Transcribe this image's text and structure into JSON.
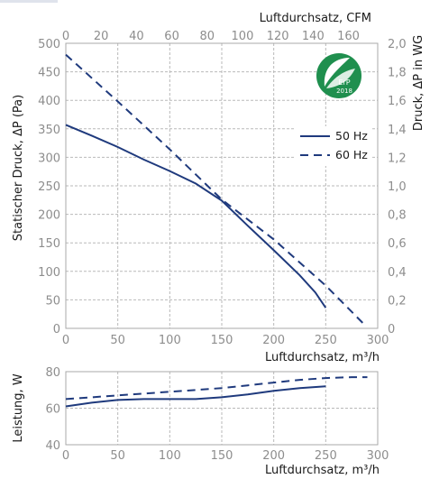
{
  "colors": {
    "series": "#1f3a7d",
    "grid": "#b9b9b9",
    "tick": "#8d8d8d",
    "logo": "#1f8f4e"
  },
  "logo": {
    "icon": "erp-leaf-logo",
    "line1": "ErP",
    "line2": "2018"
  },
  "chart_data": [
    {
      "type": "line",
      "title": "",
      "xlabel": "Luftdurchsatz, m³/h",
      "ylabel": "Statischer Druck, ΔP (Pa)",
      "xlim": [
        0,
        300
      ],
      "ylim": [
        0,
        500
      ],
      "x_ticks": [
        "0",
        "50",
        "100",
        "150",
        "200",
        "250",
        "300"
      ],
      "y_ticks": [
        "0",
        "50",
        "100",
        "150",
        "200",
        "250",
        "300",
        "350",
        "400",
        "450",
        "500"
      ],
      "secondary_x_label": "Luftdurchsatz, CFM",
      "secondary_x_ticks": [
        "0",
        "20",
        "40",
        "60",
        "80",
        "100",
        "120",
        "140",
        "160"
      ],
      "secondary_y_label": "Druck, ΔP in WG",
      "secondary_y_ticks": [
        "0",
        "0,2",
        "0,4",
        "0,6",
        "0,8",
        "1,0",
        "1,2",
        "1,4",
        "1,6",
        "1,8",
        "2,0"
      ],
      "grid": true,
      "legend_position": "top-right",
      "series": [
        {
          "name": "50 Hz",
          "style": "solid",
          "x": [
            0,
            25,
            50,
            75,
            100,
            125,
            150,
            175,
            200,
            225,
            240,
            250
          ],
          "y": [
            357,
            338,
            318,
            296,
            276,
            254,
            224,
            180,
            137,
            93,
            63,
            36
          ]
        },
        {
          "name": "60 Hz",
          "style": "dashed",
          "x": [
            0,
            50,
            100,
            150,
            200,
            250,
            288
          ],
          "y": [
            480,
            398,
            314,
            226,
            156,
            75,
            5
          ]
        }
      ]
    },
    {
      "type": "line",
      "title": "",
      "xlabel": "Luftdurchsatz, m³/h",
      "ylabel": "Leistung, W",
      "xlim": [
        0,
        300
      ],
      "ylim": [
        40,
        80
      ],
      "x_ticks": [
        "0",
        "50",
        "100",
        "150",
        "200",
        "250",
        "300"
      ],
      "y_ticks": [
        "40",
        "60",
        "80"
      ],
      "grid": true,
      "series": [
        {
          "name": "50 Hz",
          "style": "solid",
          "x": [
            0,
            25,
            50,
            75,
            100,
            125,
            150,
            175,
            200,
            225,
            250
          ],
          "y": [
            61,
            63,
            64.5,
            65,
            65,
            65,
            66,
            67.5,
            69.5,
            71,
            72
          ]
        },
        {
          "name": "60 Hz",
          "style": "dashed",
          "x": [
            0,
            25,
            50,
            75,
            100,
            125,
            150,
            175,
            200,
            225,
            250,
            275,
            290
          ],
          "y": [
            65,
            66,
            67,
            68,
            69,
            70,
            71,
            72.5,
            74,
            75.5,
            76.5,
            77,
            77
          ]
        }
      ]
    }
  ]
}
